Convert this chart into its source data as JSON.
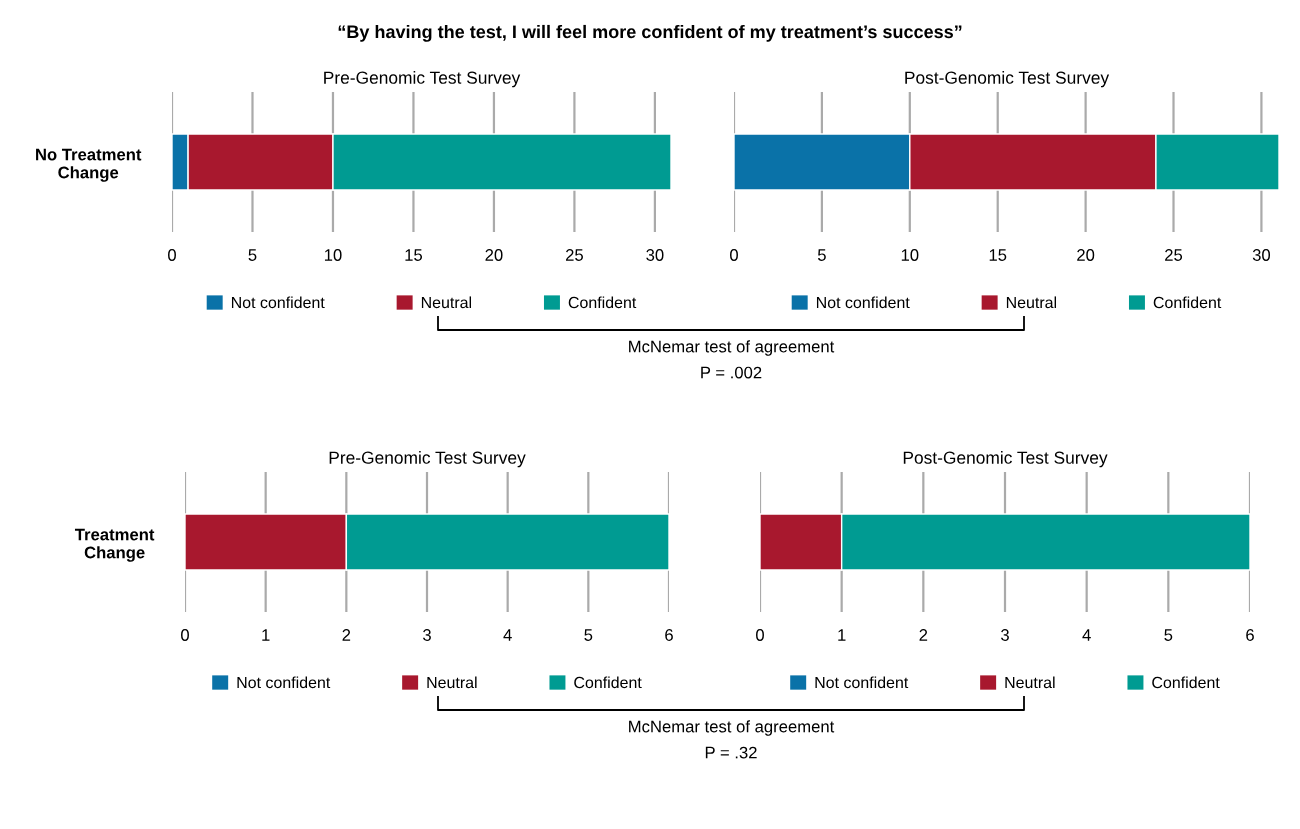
{
  "chart_data": [
    {
      "type": "bar",
      "title": "“By having the test, I will feel more confident of my treatment’s success”",
      "subtitle": "Pre-Genomic Test Survey",
      "orientation": "horizontal",
      "stacked": true,
      "categories": [
        "No Treatment Change"
      ],
      "series": [
        {
          "name": "Not confident",
          "color": "#0a72a8",
          "values": [
            1
          ]
        },
        {
          "name": "Neutral",
          "color": "#a8182e",
          "values": [
            9
          ]
        },
        {
          "name": "Confident",
          "color": "#009b92",
          "values": [
            21
          ]
        }
      ],
      "xlim": [
        0,
        31
      ],
      "xticks": [
        0,
        5,
        10,
        15,
        20,
        25,
        30
      ],
      "grid": "x",
      "legend": "bottom"
    },
    {
      "type": "bar",
      "subtitle": "Post-Genomic Test Survey",
      "orientation": "horizontal",
      "stacked": true,
      "categories": [
        null
      ],
      "series": [
        {
          "name": "Not confident",
          "color": "#0a72a8",
          "values": [
            10
          ]
        },
        {
          "name": "Neutral",
          "color": "#a8182e",
          "values": [
            14
          ]
        },
        {
          "name": "Confident",
          "color": "#009b92",
          "values": [
            7
          ]
        }
      ],
      "xlim": [
        0,
        31
      ],
      "xticks": [
        0,
        5,
        10,
        15,
        20,
        25,
        30
      ],
      "grid": "x",
      "legend": "bottom",
      "annotations": [
        "McNemar test of agreement",
        "P = .002"
      ]
    },
    {
      "type": "bar",
      "subtitle": "Pre-Genomic Test Survey",
      "orientation": "horizontal",
      "stacked": true,
      "categories": [
        "Treatment Change"
      ],
      "series": [
        {
          "name": "Not confident",
          "color": "#0a72a8",
          "values": [
            0
          ]
        },
        {
          "name": "Neutral",
          "color": "#a8182e",
          "values": [
            2
          ]
        },
        {
          "name": "Confident",
          "color": "#009b92",
          "values": [
            4
          ]
        }
      ],
      "xlim": [
        0,
        6
      ],
      "xticks": [
        0,
        1,
        2,
        3,
        4,
        5,
        6
      ],
      "grid": "x",
      "legend": "bottom"
    },
    {
      "type": "bar",
      "subtitle": "Post-Genomic Test Survey",
      "orientation": "horizontal",
      "stacked": true,
      "categories": [
        null
      ],
      "series": [
        {
          "name": "Not confident",
          "color": "#0a72a8",
          "values": [
            0
          ]
        },
        {
          "name": "Neutral",
          "color": "#a8182e",
          "values": [
            1
          ]
        },
        {
          "name": "Confident",
          "color": "#009b92",
          "values": [
            5
          ]
        }
      ],
      "xlim": [
        0,
        6
      ],
      "xticks": [
        0,
        1,
        2,
        3,
        4,
        5,
        6
      ],
      "grid": "x",
      "legend": "bottom",
      "annotations": [
        "McNemar test of agreement",
        "P = .32"
      ]
    }
  ]
}
